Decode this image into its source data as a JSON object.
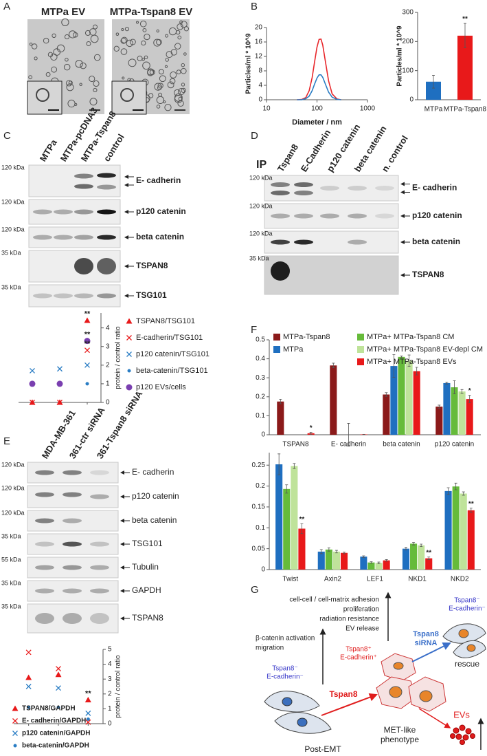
{
  "panel_labels": [
    "A",
    "B",
    "C",
    "D",
    "E",
    "F",
    "G"
  ],
  "panels": {
    "A": {
      "titles": [
        "MTPa EV",
        "MTPa-Tspan8 EV"
      ]
    },
    "C": {
      "lanes": [
        "MTPa",
        "MTPa-pcDNA3",
        "MTPa-Tspan8",
        "control"
      ],
      "rows": [
        {
          "kda": "120 kDa",
          "name": "E- cadherin"
        },
        {
          "kda": "120 kDa",
          "name": "p120 catenin"
        },
        {
          "kda": "120 kDa",
          "name": "beta catenin"
        },
        {
          "kda": "35 kDa",
          "name": "TSPAN8"
        },
        {
          "kda": "35 kDa",
          "name": "TSG101"
        }
      ]
    },
    "D": {
      "label": "IP",
      "lanes": [
        "Tspan8",
        "E-Cadherin",
        "p120 catenin",
        "beta catenin",
        "n. control"
      ],
      "rows": [
        {
          "kda": "120 kDa",
          "name": "E- cadherin"
        },
        {
          "kda": "120 kDa",
          "name": "p120 catenin"
        },
        {
          "kda": "120 kDa",
          "name": "beta catenin"
        },
        {
          "kda": "35 kDa",
          "name": "TSPAN8"
        }
      ]
    },
    "E": {
      "lanes": [
        "MDA-MB-361",
        "361-ctr siRNA",
        "361-Tspan8 siRNA"
      ],
      "rows": [
        {
          "kda": "120 kDa",
          "name": "E- cadherin"
        },
        {
          "kda": "120 kDa",
          "name": "p120 catenin"
        },
        {
          "kda": "120 kDa",
          "name": "beta catenin"
        },
        {
          "kda": "35 kDa",
          "name": "TSG101"
        },
        {
          "kda": "55 kDa",
          "name": "Tubulin"
        },
        {
          "kda": "35 kDa",
          "name": "GAPDH"
        },
        {
          "kda": "35 kDa",
          "name": "TSPAN8"
        }
      ]
    },
    "G": {
      "adhesion": "cell-cell / cell-matrix adhesion",
      "proliferation": "proliferation",
      "radiation": "radiation resistance",
      "ev_release": "EV release",
      "bcat": "β-catenin activation",
      "migration": "migration",
      "left_tspan": "Tspan8⁻",
      "left_ecad": "E-cadherin⁻",
      "mid_tspan": "Tspan8⁺",
      "mid_ecad": "E-cadherin⁺",
      "right_tspan": "Tspan8⁻",
      "right_ecad": "E-cadherin⁻",
      "tspan8_arrow": "Tspan8",
      "sirna_1": "Tspan8",
      "sirna_2": "siRNA",
      "rescue": "rescue",
      "met_1": "MET-like",
      "met_2": "phenotype",
      "evs": "EVs",
      "post_emt": "Post-EMT"
    }
  },
  "chart_data": [
    {
      "type": "line",
      "ylabel": "Particles/ml * 10^9",
      "xlabel": "Diameter / nm",
      "xscale": "log",
      "x": [
        40,
        50,
        60,
        70,
        80,
        90,
        100,
        110,
        120,
        130,
        150,
        170,
        200,
        250,
        300
      ],
      "series": [
        {
          "color": "#e8262a",
          "values": [
            0,
            0.1,
            0.6,
            2.5,
            6.1,
            10.6,
            14.6,
            16.7,
            16.8,
            15.1,
            9.8,
            5.2,
            1.6,
            0.2,
            0
          ]
        },
        {
          "color": "#2a7dc4",
          "values": [
            0,
            0,
            0.3,
            1,
            2.5,
            4.4,
            6,
            6.9,
            6.9,
            6.2,
            4,
            2.1,
            0.7,
            0.1,
            0
          ]
        }
      ],
      "xlim": [
        10,
        1000
      ],
      "xticks": [
        10,
        100,
        1000
      ],
      "ylim": [
        0,
        20
      ],
      "yticks": [
        0,
        4,
        8,
        12,
        16,
        20
      ]
    },
    {
      "type": "bar",
      "ylabel": "Particles/ml * 10^9",
      "categories": [
        "MTPa",
        "MTPa-Tspan8"
      ],
      "values": [
        62,
        220
      ],
      "errors": [
        22,
        42
      ],
      "colors": [
        "#1f6fc0",
        "#e8191a"
      ],
      "ylim": [
        0,
        300
      ],
      "yticks": [
        0,
        100,
        200,
        300
      ],
      "annotations": [
        {
          "text": "**",
          "index": 1
        }
      ]
    },
    {
      "type": "scatter",
      "ylabel": "protein / control ratio",
      "y_axis_side": "right",
      "categories": [
        null,
        null,
        null
      ],
      "series": [
        {
          "name": "TSPAN8/TSG101",
          "marker": "triangle",
          "color": "#e8191a",
          "values": [
            0,
            0,
            4.4
          ]
        },
        {
          "name": "E-cadherin/TSG101",
          "marker": "x",
          "color": "#e8191a",
          "values": [
            0,
            0,
            2.8
          ]
        },
        {
          "name": "p120 catenin/TSG101",
          "marker": "x",
          "color": "#2a7dc4",
          "values": [
            1.7,
            1.8,
            2.0
          ]
        },
        {
          "name": "beta-catenin/TSG101",
          "marker": "dot",
          "color": "#2a7dc4",
          "values": [
            1,
            1,
            1
          ]
        },
        {
          "name": "p120 EVs/cells",
          "marker": "circle",
          "color": "#7a3fb0",
          "values": [
            1,
            1,
            3.3
          ]
        }
      ],
      "ylim": [
        0,
        4.8
      ],
      "yticks": [
        0,
        1,
        2,
        3,
        4
      ],
      "legend": "right",
      "annotations": [
        {
          "text": "**",
          "series": 0,
          "index": 2
        },
        {
          "text": "**",
          "series": 4,
          "index": 2
        },
        {
          "text": "**",
          "series": 1,
          "index": 2
        }
      ]
    },
    {
      "type": "scatter",
      "ylabel": "protein / control ratio",
      "y_axis_side": "right",
      "categories": [
        null,
        null,
        null
      ],
      "series": [
        {
          "name": "TSPAN8/GAPDH",
          "marker": "triangle",
          "color": "#e8191a",
          "values": [
            3.1,
            3.3,
            1.6
          ]
        },
        {
          "name": "E- cadherin/GAPDH",
          "marker": "x",
          "color": "#e8191a",
          "values": [
            4.8,
            3.7,
            0.1
          ]
        },
        {
          "name": "p120 catenin/GAPDH",
          "marker": "x",
          "color": "#2a7dc4",
          "values": [
            2.5,
            2.4,
            0.7
          ]
        },
        {
          "name": "beta-catenin/GAPDH",
          "marker": "dot",
          "color": "#2a7dc4",
          "values": [
            1.1,
            1.1,
            0.3
          ]
        }
      ],
      "ylim": [
        0,
        5
      ],
      "yticks": [
        0,
        1,
        2,
        3,
        4,
        5
      ],
      "legend": "bottom",
      "annotations": [
        {
          "text": "**",
          "series": 0,
          "index": 2
        }
      ]
    },
    {
      "type": "bar",
      "categories": [
        "TSPAN8",
        "E- cadherin",
        "beta catenin",
        "p120 catenin"
      ],
      "series": [
        {
          "name": "MTPa-Tspan8",
          "color": "#8b1a1a",
          "values": [
            0.175,
            0.365,
            0.212,
            0.148
          ],
          "errors": [
            0.012,
            0.012,
            0.01,
            0.008
          ]
        },
        {
          "name": "MTPa",
          "color": "#1f6fc0",
          "values": [
            0,
            0,
            0.362,
            0.272
          ],
          "errors": [
            0,
            0,
            0.06,
            0.005
          ]
        },
        {
          "name": "MTPa+ MTPa-Tspan8 CM",
          "color": "#66bb3a",
          "values": [
            0,
            0,
            0.41,
            0.25
          ],
          "errors": [
            0,
            0.06,
            0.005,
            0.035
          ]
        },
        {
          "name": "MTPa+ MTPa-Tspan8 EV-depl CM",
          "color": "#bfe39a",
          "values": [
            0,
            0,
            0.39,
            0.228
          ],
          "errors": [
            0,
            0,
            0.03,
            0.01
          ]
        },
        {
          "name": "MTPa+ MTPa-Tspan8 EVs",
          "color": "#e8191a",
          "values": [
            0.008,
            0.002,
            0.335,
            0.188
          ],
          "errors": [
            0.005,
            0,
            0.02,
            0.02
          ]
        }
      ],
      "ylim": [
        0,
        0.5
      ],
      "yticks": [
        0,
        0.1,
        0.2,
        0.3,
        0.4,
        0.5
      ],
      "legend": "top",
      "annotations": [
        {
          "text": "*",
          "series": 4,
          "index": 0
        },
        {
          "text": "*",
          "series": 4,
          "index": 3
        }
      ]
    },
    {
      "type": "bar",
      "categories": [
        "Twist",
        "Axin2",
        "LEF1",
        "NKD1",
        "NKD2"
      ],
      "series": [
        {
          "color": "#1f6fc0",
          "values": [
            0.252,
            0.043,
            0.031,
            0.05,
            0.188
          ],
          "errors": [
            0.025,
            0.005,
            0.002,
            0.003,
            0.008
          ]
        },
        {
          "color": "#66bb3a",
          "values": [
            0.193,
            0.048,
            0.017,
            0.062,
            0.199
          ],
          "errors": [
            0.01,
            0.004,
            0.002,
            0.003,
            0.008
          ]
        },
        {
          "color": "#bfe39a",
          "values": [
            0.248,
            0.043,
            0.016,
            0.058,
            0.182
          ],
          "errors": [
            0.006,
            0.003,
            0.002,
            0.003,
            0.004
          ]
        },
        {
          "color": "#e8191a",
          "values": [
            0.098,
            0.04,
            0.022,
            0.027,
            0.142
          ],
          "errors": [
            0.012,
            0.002,
            0.002,
            0.003,
            0.005
          ]
        }
      ],
      "ylim": [
        0,
        0.28
      ],
      "yticks": [
        0,
        0.05,
        0.1,
        0.15,
        0.2,
        0.25
      ],
      "annotations": [
        {
          "text": "**",
          "series": 3,
          "index": 0
        },
        {
          "text": "**",
          "series": 3,
          "index": 3
        },
        {
          "text": "**",
          "series": 3,
          "index": 4
        }
      ]
    }
  ]
}
